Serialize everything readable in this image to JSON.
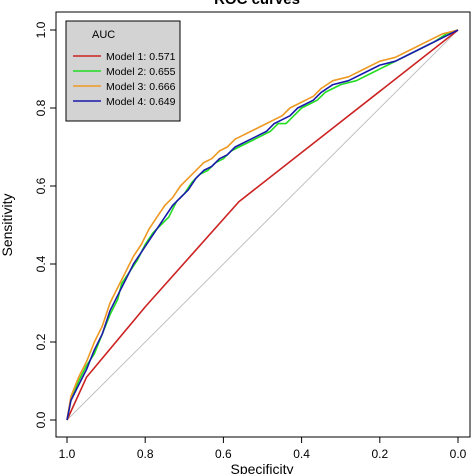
{
  "chart_data": {
    "type": "line",
    "title": "ROC curves",
    "xlabel": "Specificity",
    "ylabel": "Sensitivity",
    "xlim": [
      1.0,
      0.0
    ],
    "ylim": [
      0.0,
      1.0
    ],
    "x_reversed": true,
    "x_ticks": [
      "1.0",
      "0.8",
      "0.6",
      "0.4",
      "0.2",
      "0.0"
    ],
    "y_ticks": [
      "0.0",
      "0.2",
      "0.4",
      "0.6",
      "0.8",
      "1.0"
    ],
    "grid": false,
    "legend": {
      "title": "AUC",
      "placement": "top-left",
      "background": "#d3d3d3"
    },
    "reference_line": {
      "from": [
        1.0,
        0.0
      ],
      "to": [
        0.0,
        1.0
      ],
      "color": "#c0c0c0"
    },
    "series": [
      {
        "name": "Model 1: 0.571",
        "color": "#cc2222",
        "x": [
          1.0,
          0.95,
          0.8,
          0.56,
          0.0
        ],
        "y": [
          0.0,
          0.11,
          0.29,
          0.56,
          1.0
        ]
      },
      {
        "name": "Model 2: 0.655",
        "color": "#22dd22",
        "x": [
          1.0,
          0.99,
          0.97,
          0.95,
          0.93,
          0.91,
          0.89,
          0.87,
          0.86,
          0.84,
          0.82,
          0.8,
          0.78,
          0.76,
          0.74,
          0.72,
          0.7,
          0.68,
          0.66,
          0.64,
          0.62,
          0.6,
          0.58,
          0.56,
          0.54,
          0.52,
          0.5,
          0.48,
          0.46,
          0.44,
          0.42,
          0.4,
          0.38,
          0.36,
          0.34,
          0.3,
          0.26,
          0.22,
          0.18,
          0.14,
          0.1,
          0.06,
          0.03,
          0.0
        ],
        "y": [
          0.0,
          0.05,
          0.1,
          0.14,
          0.17,
          0.22,
          0.27,
          0.31,
          0.35,
          0.38,
          0.41,
          0.45,
          0.48,
          0.5,
          0.52,
          0.56,
          0.58,
          0.61,
          0.63,
          0.64,
          0.66,
          0.67,
          0.69,
          0.7,
          0.71,
          0.72,
          0.73,
          0.74,
          0.76,
          0.76,
          0.78,
          0.8,
          0.81,
          0.82,
          0.84,
          0.86,
          0.87,
          0.89,
          0.91,
          0.93,
          0.95,
          0.97,
          0.99,
          1.0
        ]
      },
      {
        "name": "Model 3: 0.666",
        "color": "#ee9922",
        "x": [
          1.0,
          0.99,
          0.97,
          0.95,
          0.93,
          0.91,
          0.89,
          0.87,
          0.85,
          0.83,
          0.81,
          0.79,
          0.77,
          0.75,
          0.73,
          0.71,
          0.69,
          0.67,
          0.65,
          0.63,
          0.61,
          0.59,
          0.57,
          0.55,
          0.53,
          0.51,
          0.49,
          0.47,
          0.45,
          0.43,
          0.41,
          0.39,
          0.37,
          0.35,
          0.32,
          0.28,
          0.24,
          0.2,
          0.16,
          0.12,
          0.08,
          0.04,
          0.0
        ],
        "y": [
          0.0,
          0.06,
          0.11,
          0.15,
          0.2,
          0.24,
          0.3,
          0.34,
          0.38,
          0.42,
          0.45,
          0.49,
          0.52,
          0.55,
          0.57,
          0.6,
          0.62,
          0.64,
          0.66,
          0.67,
          0.69,
          0.7,
          0.72,
          0.73,
          0.74,
          0.75,
          0.76,
          0.77,
          0.78,
          0.8,
          0.81,
          0.82,
          0.83,
          0.85,
          0.87,
          0.88,
          0.9,
          0.92,
          0.93,
          0.95,
          0.97,
          0.99,
          1.0
        ]
      },
      {
        "name": "Model 4: 0.649",
        "color": "#1a1aaa",
        "x": [
          1.0,
          0.99,
          0.97,
          0.95,
          0.93,
          0.91,
          0.89,
          0.87,
          0.85,
          0.83,
          0.81,
          0.79,
          0.77,
          0.75,
          0.73,
          0.71,
          0.69,
          0.67,
          0.65,
          0.63,
          0.61,
          0.59,
          0.57,
          0.55,
          0.53,
          0.51,
          0.49,
          0.47,
          0.45,
          0.43,
          0.41,
          0.39,
          0.37,
          0.35,
          0.32,
          0.28,
          0.24,
          0.2,
          0.16,
          0.12,
          0.08,
          0.04,
          0.0
        ],
        "y": [
          0.0,
          0.05,
          0.09,
          0.13,
          0.18,
          0.22,
          0.28,
          0.32,
          0.36,
          0.4,
          0.43,
          0.46,
          0.49,
          0.52,
          0.55,
          0.57,
          0.59,
          0.62,
          0.64,
          0.65,
          0.67,
          0.68,
          0.7,
          0.71,
          0.72,
          0.73,
          0.74,
          0.76,
          0.77,
          0.78,
          0.8,
          0.81,
          0.82,
          0.84,
          0.86,
          0.87,
          0.89,
          0.91,
          0.92,
          0.94,
          0.96,
          0.98,
          1.0
        ]
      }
    ]
  }
}
